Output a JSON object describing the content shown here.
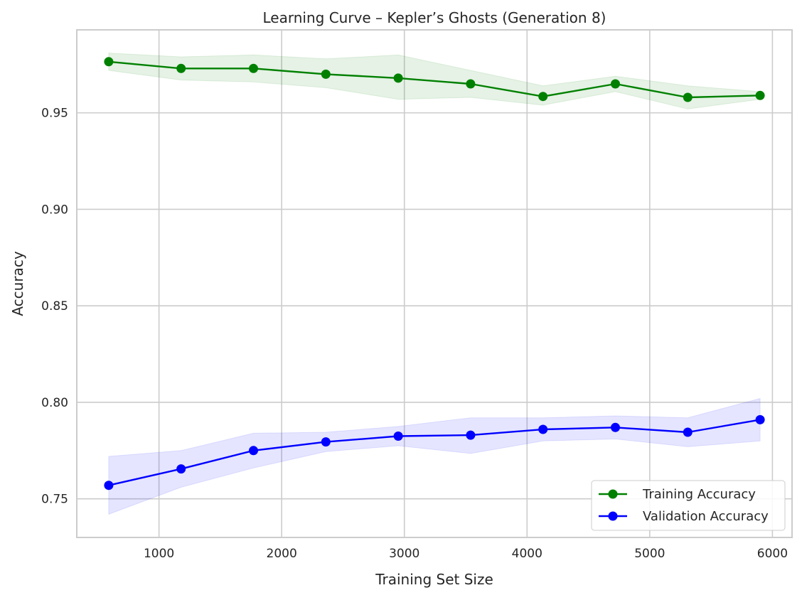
{
  "chart_data": {
    "type": "line",
    "title": "Learning Curve – Kepler’s Ghosts (Generation 8)",
    "xlabel": "Training Set Size",
    "ylabel": "Accuracy",
    "x": [
      590,
      1180,
      1770,
      2360,
      2950,
      3540,
      4130,
      4720,
      5310,
      5900
    ],
    "xlim": [
      330,
      6160
    ],
    "ylim": [
      0.73,
      0.993
    ],
    "xticks": [
      1000,
      2000,
      3000,
      4000,
      5000,
      6000
    ],
    "yticks": [
      0.75,
      0.8,
      0.85,
      0.9,
      0.95
    ],
    "xtick_labels": [
      "1000",
      "2000",
      "3000",
      "4000",
      "5000",
      "6000"
    ],
    "ytick_labels": [
      "0.75",
      "0.80",
      "0.85",
      "0.90",
      "0.95"
    ],
    "grid": true,
    "legend_position": "lower-right",
    "series": [
      {
        "name": "Training Accuracy",
        "color": "#008000",
        "band_color": "#008000",
        "values": [
          0.9765,
          0.973,
          0.973,
          0.97,
          0.968,
          0.965,
          0.9585,
          0.965,
          0.958,
          0.959
        ],
        "lower": [
          0.972,
          0.967,
          0.966,
          0.963,
          0.957,
          0.958,
          0.954,
          0.961,
          0.952,
          0.957
        ],
        "upper": [
          0.981,
          0.979,
          0.98,
          0.978,
          0.98,
          0.972,
          0.964,
          0.969,
          0.964,
          0.961
        ]
      },
      {
        "name": "Validation Accuracy",
        "color": "#0000ff",
        "band_color": "#0000ff",
        "values": [
          0.757,
          0.7655,
          0.775,
          0.7795,
          0.7825,
          0.783,
          0.786,
          0.787,
          0.7845,
          0.791
        ],
        "lower": [
          0.742,
          0.756,
          0.766,
          0.7745,
          0.7775,
          0.7735,
          0.78,
          0.781,
          0.777,
          0.78
        ],
        "upper": [
          0.772,
          0.775,
          0.784,
          0.7845,
          0.7875,
          0.792,
          0.792,
          0.793,
          0.792,
          0.802
        ]
      }
    ]
  }
}
